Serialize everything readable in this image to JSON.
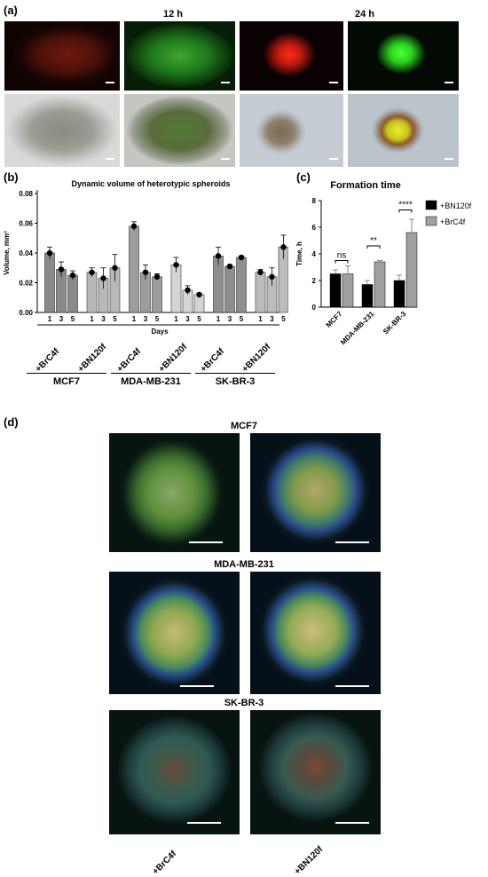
{
  "panel_a": {
    "label": "(a)",
    "time_left": "12 h",
    "time_right": "24 h"
  },
  "panel_b": {
    "label": "(b)",
    "groups": [
      {
        "cell_line": "MCF7",
        "conditions": [
          "+BrC4f",
          "+BN120f"
        ]
      },
      {
        "cell_line": "MDA-MB-231",
        "conditions": [
          "+BrC4f",
          "+BN120f"
        ]
      },
      {
        "cell_line": "SK-BR-3",
        "conditions": [
          "+BrC4f",
          "+BN120f"
        ]
      }
    ]
  },
  "panel_c": {
    "label": "(c)",
    "legend": [
      "+BN120f",
      "+BrC4f"
    ],
    "sig": [
      "ns",
      "**",
      "****"
    ]
  },
  "panel_d": {
    "label": "(d)",
    "rows": [
      "MCF7",
      "MDA-MB-231",
      "SK-BR-3"
    ],
    "columns": [
      "+BrC4f",
      "+BN120f"
    ]
  },
  "chart_data": [
    {
      "type": "bar",
      "title": "Dynamic volume of heterotypic spheroids",
      "xlabel": "Days",
      "ylabel": "Volume, mm³",
      "ylim": [
        0,
        0.08
      ],
      "yticks": [
        "0.00",
        "0.02",
        "0.04",
        "0.06",
        "0.08"
      ],
      "categories": [
        "1",
        "3",
        "5",
        "1",
        "3",
        "5",
        "1",
        "3",
        "5",
        "1",
        "3",
        "5",
        "1",
        "3",
        "5",
        "1",
        "3",
        "5"
      ],
      "series": [
        {
          "values": [
            0.04,
            0.029,
            0.025,
            0.027,
            0.023,
            0.03,
            0.058,
            0.027,
            0.024,
            0.032,
            0.015,
            0.012,
            0.038,
            0.031,
            0.037,
            0.027,
            0.024,
            0.044
          ],
          "errors": [
            0.004,
            0.005,
            0.003,
            0.003,
            0.007,
            0.009,
            0.003,
            0.005,
            0.002,
            0.005,
            0.003,
            0.001,
            0.006,
            0.001,
            0.001,
            0.002,
            0.006,
            0.008
          ]
        }
      ]
    },
    {
      "type": "bar",
      "title": "Formation time",
      "ylabel": "Time, h",
      "ylim": [
        0,
        8
      ],
      "yticks": [
        "0",
        "2",
        "4",
        "6",
        "8"
      ],
      "categories": [
        "MCF7",
        "MDA-MB-231",
        "SK-BR-3"
      ],
      "series": [
        {
          "name": "+BN120f",
          "values": [
            2.5,
            1.7,
            2.0
          ],
          "errors": [
            0.3,
            0.3,
            0.4
          ]
        },
        {
          "name": "+BrC4f",
          "values": [
            2.5,
            3.4,
            5.6
          ],
          "errors": [
            0.6,
            0.1,
            1.0
          ]
        }
      ]
    }
  ]
}
